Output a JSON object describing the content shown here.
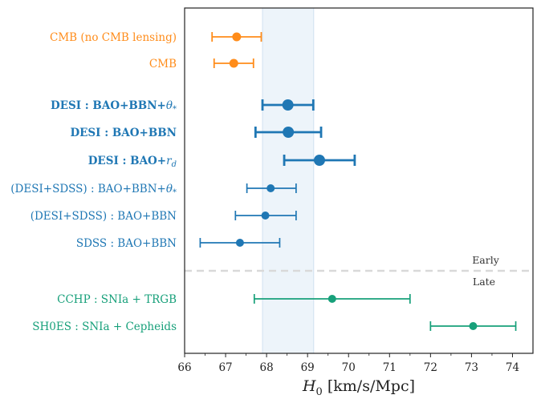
{
  "chart_data": {
    "type": "scatter",
    "title": "",
    "xlabel": "H0 [km/s/Mpc]",
    "xlabel_parts": {
      "symbol": "H",
      "subscript": "0",
      "unit": " [km/s/Mpc]"
    },
    "xlim": [
      66,
      74.5
    ],
    "xticks": [
      66,
      67,
      68,
      69,
      70,
      71,
      72,
      73,
      74
    ],
    "band": {
      "x_start": 67.9,
      "x_end": 69.15,
      "color": "#d6e6f4"
    },
    "divider": {
      "after_index": 7,
      "color": "#d9d9d9"
    },
    "era_labels": {
      "top": "Early",
      "bottom": "Late"
    },
    "colors": {
      "cmb": "#ff8c1a",
      "desi": "#1f77b4",
      "late": "#17a07a"
    },
    "points": [
      {
        "label": "CMB (no CMB lensing)",
        "value": 67.27,
        "lo": 66.67,
        "hi": 67.87,
        "color": "#ff8c1a",
        "bold": false,
        "size": "small"
      },
      {
        "label": "CMB",
        "value": 67.2,
        "lo": 66.72,
        "hi": 67.68,
        "color": "#ff8c1a",
        "bold": false,
        "size": "small"
      },
      {
        "label": "DESI : BAO+BBN+θ*",
        "label_parts": {
          "main": "DESI : BAO+BBN+",
          "math": "θ",
          "sub": "*"
        },
        "value": 68.52,
        "lo": 67.9,
        "hi": 69.14,
        "color": "#1f77b4",
        "bold": true,
        "size": "large"
      },
      {
        "label": "DESI : BAO+BBN",
        "value": 68.53,
        "lo": 67.73,
        "hi": 69.33,
        "color": "#1f77b4",
        "bold": true,
        "size": "large"
      },
      {
        "label": "DESI : BAO+rd",
        "label_parts": {
          "main": "DESI : BAO+",
          "math": "r",
          "sub": "d"
        },
        "value": 69.29,
        "lo": 68.43,
        "hi": 70.15,
        "color": "#1f77b4",
        "bold": true,
        "size": "large"
      },
      {
        "label": "(DESI+SDSS) : BAO+BBN+θ*",
        "label_parts": {
          "main": "(DESI+SDSS) : BAO+BBN+",
          "math": "θ",
          "sub": "*"
        },
        "value": 68.1,
        "lo": 67.52,
        "hi": 68.72,
        "color": "#1f77b4",
        "bold": false,
        "size": "medium"
      },
      {
        "label": "(DESI+SDSS) : BAO+BBN",
        "value": 67.97,
        "lo": 67.24,
        "hi": 68.72,
        "color": "#1f77b4",
        "bold": false,
        "size": "medium"
      },
      {
        "label": "SDSS : BAO+BBN",
        "value": 67.35,
        "lo": 66.38,
        "hi": 68.32,
        "color": "#1f77b4",
        "bold": false,
        "size": "medium"
      },
      {
        "label": "CCHP : SNIa + TRGB",
        "value": 69.6,
        "lo": 67.7,
        "hi": 71.5,
        "color": "#17a07a",
        "bold": false,
        "size": "medium"
      },
      {
        "label": "SH0ES : SNIa + Cepheids",
        "value": 73.04,
        "lo": 72.0,
        "hi": 74.08,
        "color": "#17a07a",
        "bold": false,
        "size": "medium"
      }
    ]
  }
}
